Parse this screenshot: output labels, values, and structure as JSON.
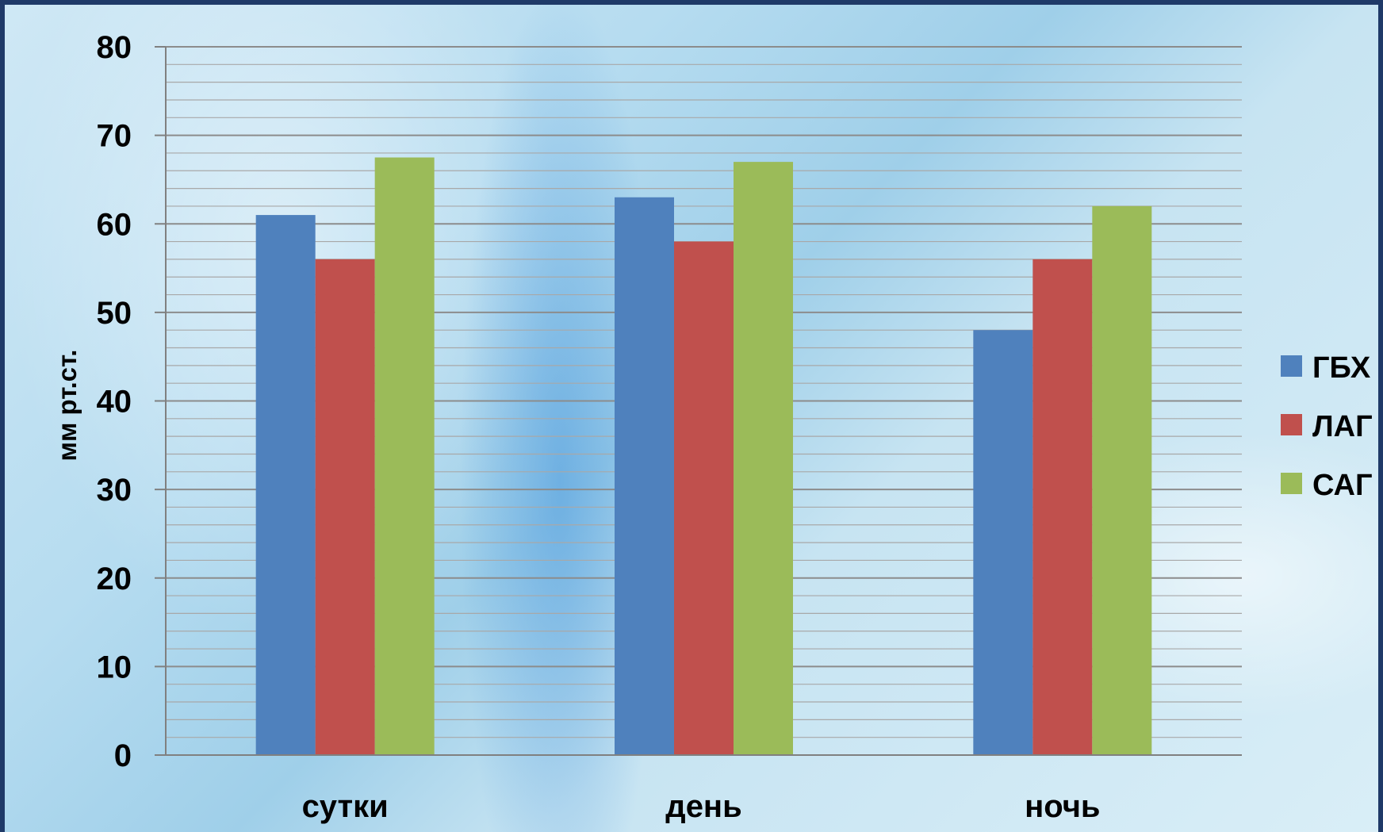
{
  "chart_data": {
    "type": "bar",
    "categories": [
      "сутки",
      "день",
      "ночь"
    ],
    "series": [
      {
        "name": "ГБХ",
        "color": "#4f81bd",
        "values": [
          61,
          63,
          48
        ]
      },
      {
        "name": "ЛАГ",
        "color": "#c0504d",
        "values": [
          56,
          58,
          56
        ]
      },
      {
        "name": "САГ",
        "color": "#9bbb59",
        "values": [
          67.5,
          67,
          62
        ]
      }
    ],
    "title": "",
    "xlabel": "",
    "ylabel": "мм рт.ст.",
    "ylim": [
      0,
      80
    ],
    "yticks": [
      0,
      10,
      20,
      30,
      40,
      50,
      60,
      70,
      80
    ],
    "minor_grid_step": 2,
    "grid": true,
    "legend_position": "right"
  }
}
